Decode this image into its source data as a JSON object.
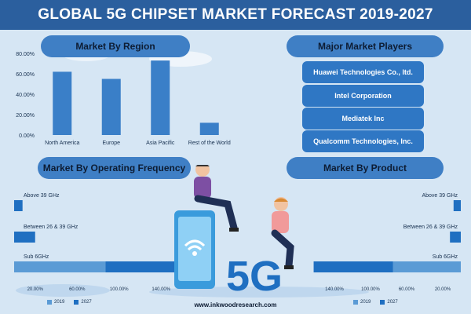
{
  "title": "GLOBAL 5G CHIPSET MARKET FORECAST 2019-2027",
  "colors": {
    "bar_2019": "#5b9bd5",
    "bar_2027": "#1f6fc1",
    "region_bar": "#3a7fc8",
    "panel": "#3f7fc5",
    "title_bar": "#2b5f9e",
    "background": "#d6e6f4"
  },
  "headings": {
    "region": "Market By Region",
    "players": "Major Market Players",
    "frequency": "Market By Operating Frequency",
    "product": "Market By Product"
  },
  "players": [
    "Huawei Technologies Co., ltd.",
    "Intel Corporation",
    "Mediatek Inc",
    "Qualcomm Technologies, Inc."
  ],
  "big_label": "5G",
  "footer_url": "www.inkwoodresearch.com",
  "legend": {
    "series_a": "2019",
    "series_b": "2027"
  },
  "chart_data": [
    {
      "type": "bar",
      "title": "Market By Region",
      "categories": [
        "North America",
        "Europe",
        "Asia Pacific",
        "Rest of the World"
      ],
      "values": [
        62,
        55,
        73,
        12
      ],
      "ylim": [
        0,
        80
      ],
      "yticks": [
        "0.00%",
        "20.00%",
        "40.00%",
        "60.00%",
        "80.00%"
      ],
      "grid": false
    },
    {
      "type": "bar",
      "orientation": "horizontal",
      "stacked": true,
      "title": "Market By Operating Frequency",
      "categories": [
        "Above 39 GHz",
        "Between 26 & 39 GHz",
        "Sub 6GHz"
      ],
      "series": [
        {
          "name": "2019",
          "values": [
            0,
            0,
            87
          ]
        },
        {
          "name": "2027",
          "values": [
            8,
            20,
            75
          ]
        }
      ],
      "xlim": [
        0,
        160
      ],
      "xticks": [
        "20.00%",
        "60.00%",
        "100.00%",
        "140.00%"
      ],
      "legend_position": "bottom"
    },
    {
      "type": "bar",
      "orientation": "horizontal",
      "stacked": true,
      "reversed_x": true,
      "title": "Market By Product",
      "categories": [
        "Above 39 GHz",
        "Between 26 & 39 GHz",
        "Sub 6GHz"
      ],
      "series": [
        {
          "name": "2019",
          "values": [
            0,
            0,
            75
          ]
        },
        {
          "name": "2027",
          "values": [
            8,
            12,
            88
          ]
        }
      ],
      "xlim": [
        0,
        160
      ],
      "xticks": [
        "140.00%",
        "100.00%",
        "60.00%",
        "20.00%"
      ],
      "legend_position": "bottom"
    }
  ]
}
